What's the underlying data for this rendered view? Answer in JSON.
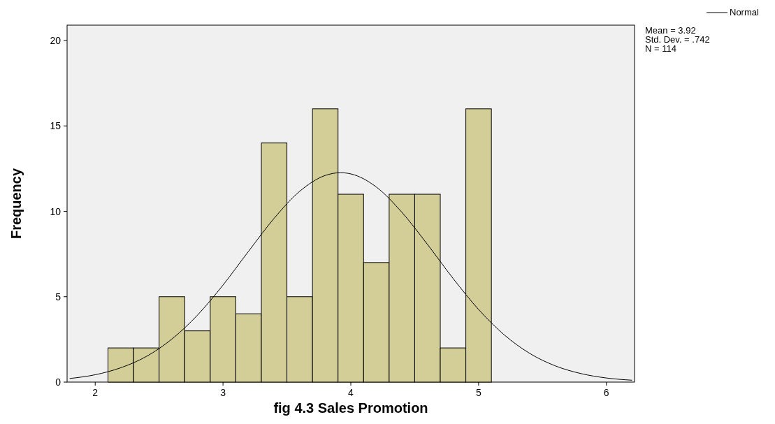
{
  "chart_data": {
    "type": "histogram",
    "xlabel": "fig 4.3 Sales Promotion",
    "ylabel": "Frequency",
    "bins": [
      2.1,
      2.3,
      2.5,
      2.7,
      2.9,
      3.1,
      3.3,
      3.5,
      3.7,
      3.9,
      4.1,
      4.3,
      4.5,
      4.7,
      4.9,
      5.1
    ],
    "values": [
      2,
      2,
      5,
      3,
      5,
      4,
      14,
      5,
      16,
      11,
      7,
      11,
      11,
      2,
      16
    ],
    "color": "#d3ce97",
    "series": [
      {
        "type": "line",
        "name": "Normal",
        "color": "#000000",
        "x": [
          1.8,
          2.0,
          2.2,
          2.4,
          2.6,
          2.8,
          3.0,
          3.2,
          3.4,
          3.6,
          3.8,
          3.92,
          4.0,
          4.2,
          4.4,
          4.6,
          4.8,
          5.0,
          5.2,
          5.4,
          5.6,
          5.8,
          6.0,
          6.2
        ],
        "values": [
          0.21,
          0.43,
          0.84,
          1.5,
          2.52,
          3.92,
          5.68,
          7.66,
          9.59,
          11.17,
          12.1,
          12.26,
          12.19,
          11.42,
          9.94,
          8.06,
          6.07,
          4.25,
          2.77,
          1.68,
          0.95,
          0.5,
          0.24,
          0.11
        ]
      }
    ],
    "xlim": [
      1.78,
      6.22
    ],
    "xticks": [
      2,
      3,
      4,
      5,
      6
    ],
    "ylim": [
      0,
      20.9
    ],
    "yticks": [
      0,
      5,
      10,
      15,
      20
    ],
    "legend": "top right",
    "annotations": [
      "Mean = 3.92",
      "Std. Dev. = .742",
      "N = 114"
    ]
  }
}
